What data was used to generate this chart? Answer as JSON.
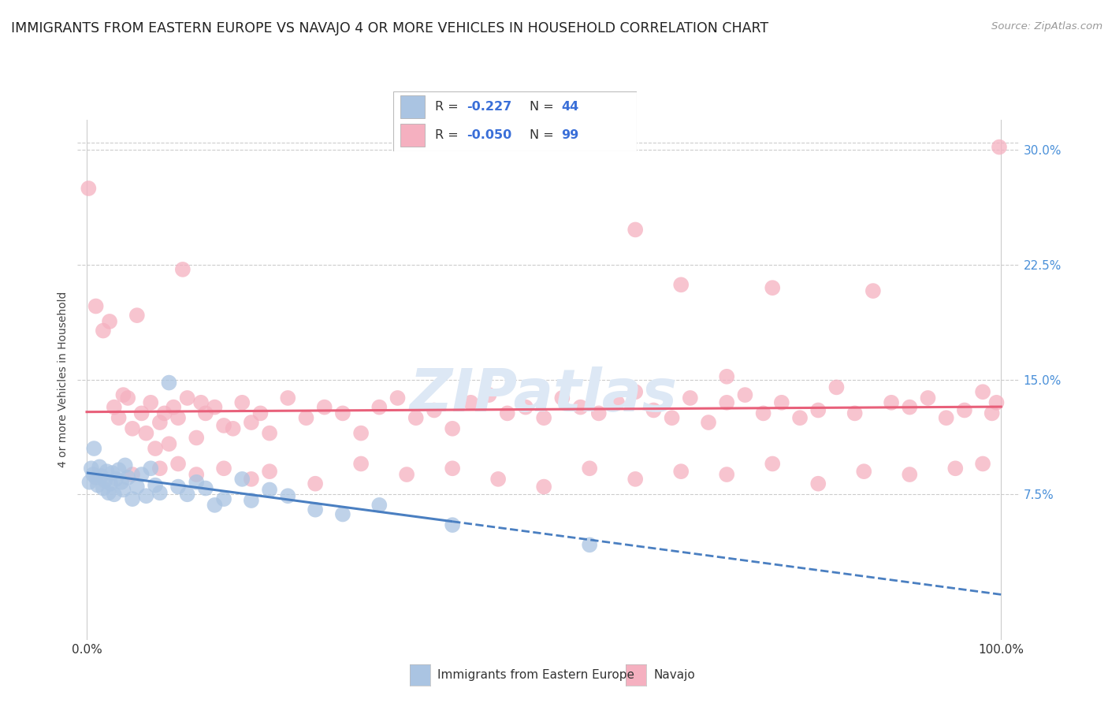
{
  "title": "IMMIGRANTS FROM EASTERN EUROPE VS NAVAJO 4 OR MORE VEHICLES IN HOUSEHOLD CORRELATION CHART",
  "source": "Source: ZipAtlas.com",
  "ylabel": "4 or more Vehicles in Household",
  "legend1_label": "Immigrants from Eastern Europe",
  "legend2_label": "Navajo",
  "R1": -0.227,
  "N1": 44,
  "R2": -0.05,
  "N2": 99,
  "color_blue": "#aac4e2",
  "color_pink": "#f5b0c0",
  "line_blue": "#4a7fc1",
  "line_pink": "#e8607a",
  "text_blue": "#3a6fd8",
  "watermark_color": "#dde8f5",
  "background_color": "#ffffff",
  "grid_color": "#cccccc",
  "ytick_color": "#4a90d9",
  "ylim": [
    -2,
    32
  ],
  "xlim": [
    -1,
    102
  ],
  "blue_scatter": [
    [
      0.3,
      8.3
    ],
    [
      0.5,
      9.2
    ],
    [
      0.7,
      8.8
    ],
    [
      0.8,
      10.5
    ],
    [
      1.0,
      8.6
    ],
    [
      1.2,
      8.1
    ],
    [
      1.4,
      9.3
    ],
    [
      1.6,
      8.7
    ],
    [
      1.8,
      7.9
    ],
    [
      2.0,
      8.4
    ],
    [
      2.2,
      9.0
    ],
    [
      2.4,
      7.6
    ],
    [
      2.6,
      8.2
    ],
    [
      2.8,
      8.9
    ],
    [
      3.0,
      7.5
    ],
    [
      3.2,
      8.5
    ],
    [
      3.5,
      9.1
    ],
    [
      3.8,
      8.3
    ],
    [
      4.0,
      7.8
    ],
    [
      4.2,
      9.4
    ],
    [
      4.5,
      8.6
    ],
    [
      5.0,
      7.2
    ],
    [
      5.5,
      8.0
    ],
    [
      6.0,
      8.8
    ],
    [
      6.5,
      7.4
    ],
    [
      7.0,
      9.2
    ],
    [
      7.5,
      8.1
    ],
    [
      8.0,
      7.6
    ],
    [
      9.0,
      14.8
    ],
    [
      10.0,
      8.0
    ],
    [
      11.0,
      7.5
    ],
    [
      12.0,
      8.3
    ],
    [
      13.0,
      7.9
    ],
    [
      14.0,
      6.8
    ],
    [
      15.0,
      7.2
    ],
    [
      17.0,
      8.5
    ],
    [
      18.0,
      7.1
    ],
    [
      20.0,
      7.8
    ],
    [
      22.0,
      7.4
    ],
    [
      25.0,
      6.5
    ],
    [
      28.0,
      6.2
    ],
    [
      32.0,
      6.8
    ],
    [
      40.0,
      5.5
    ],
    [
      55.0,
      4.2
    ]
  ],
  "pink_scatter": [
    [
      0.2,
      27.5
    ],
    [
      1.0,
      19.8
    ],
    [
      1.8,
      18.2
    ],
    [
      2.5,
      18.8
    ],
    [
      3.0,
      13.2
    ],
    [
      3.5,
      12.5
    ],
    [
      4.0,
      14.0
    ],
    [
      4.5,
      13.8
    ],
    [
      5.0,
      11.8
    ],
    [
      5.5,
      19.2
    ],
    [
      6.0,
      12.8
    ],
    [
      6.5,
      11.5
    ],
    [
      7.0,
      13.5
    ],
    [
      7.5,
      10.5
    ],
    [
      8.0,
      12.2
    ],
    [
      8.5,
      12.8
    ],
    [
      9.0,
      10.8
    ],
    [
      9.5,
      13.2
    ],
    [
      10.0,
      12.5
    ],
    [
      10.5,
      22.2
    ],
    [
      11.0,
      13.8
    ],
    [
      12.0,
      11.2
    ],
    [
      12.5,
      13.5
    ],
    [
      13.0,
      12.8
    ],
    [
      14.0,
      13.2
    ],
    [
      15.0,
      12.0
    ],
    [
      16.0,
      11.8
    ],
    [
      17.0,
      13.5
    ],
    [
      18.0,
      12.2
    ],
    [
      19.0,
      12.8
    ],
    [
      20.0,
      11.5
    ],
    [
      22.0,
      13.8
    ],
    [
      24.0,
      12.5
    ],
    [
      26.0,
      13.2
    ],
    [
      28.0,
      12.8
    ],
    [
      30.0,
      11.5
    ],
    [
      32.0,
      13.2
    ],
    [
      34.0,
      13.8
    ],
    [
      36.0,
      12.5
    ],
    [
      38.0,
      13.0
    ],
    [
      40.0,
      11.8
    ],
    [
      42.0,
      13.5
    ],
    [
      44.0,
      14.0
    ],
    [
      46.0,
      12.8
    ],
    [
      48.0,
      13.2
    ],
    [
      50.0,
      12.5
    ],
    [
      52.0,
      13.8
    ],
    [
      54.0,
      13.2
    ],
    [
      56.0,
      12.8
    ],
    [
      58.0,
      13.5
    ],
    [
      60.0,
      14.2
    ],
    [
      62.0,
      13.0
    ],
    [
      64.0,
      12.5
    ],
    [
      66.0,
      13.8
    ],
    [
      68.0,
      12.2
    ],
    [
      70.0,
      13.5
    ],
    [
      72.0,
      14.0
    ],
    [
      74.0,
      12.8
    ],
    [
      76.0,
      13.5
    ],
    [
      78.0,
      12.5
    ],
    [
      80.0,
      13.0
    ],
    [
      82.0,
      14.5
    ],
    [
      84.0,
      12.8
    ],
    [
      86.0,
      20.8
    ],
    [
      88.0,
      13.5
    ],
    [
      90.0,
      13.2
    ],
    [
      92.0,
      13.8
    ],
    [
      94.0,
      12.5
    ],
    [
      96.0,
      13.0
    ],
    [
      98.0,
      14.2
    ],
    [
      99.0,
      12.8
    ],
    [
      99.5,
      13.5
    ],
    [
      99.8,
      30.2
    ],
    [
      5.0,
      8.8
    ],
    [
      8.0,
      9.2
    ],
    [
      10.0,
      9.5
    ],
    [
      12.0,
      8.8
    ],
    [
      15.0,
      9.2
    ],
    [
      18.0,
      8.5
    ],
    [
      20.0,
      9.0
    ],
    [
      25.0,
      8.2
    ],
    [
      30.0,
      9.5
    ],
    [
      35.0,
      8.8
    ],
    [
      40.0,
      9.2
    ],
    [
      45.0,
      8.5
    ],
    [
      50.0,
      8.0
    ],
    [
      55.0,
      9.2
    ],
    [
      60.0,
      8.5
    ],
    [
      65.0,
      9.0
    ],
    [
      70.0,
      8.8
    ],
    [
      75.0,
      9.5
    ],
    [
      80.0,
      8.2
    ],
    [
      85.0,
      9.0
    ],
    [
      90.0,
      8.8
    ],
    [
      95.0,
      9.2
    ],
    [
      98.0,
      9.5
    ],
    [
      60.0,
      24.8
    ],
    [
      65.0,
      21.2
    ],
    [
      70.0,
      15.2
    ],
    [
      75.0,
      21.0
    ]
  ]
}
